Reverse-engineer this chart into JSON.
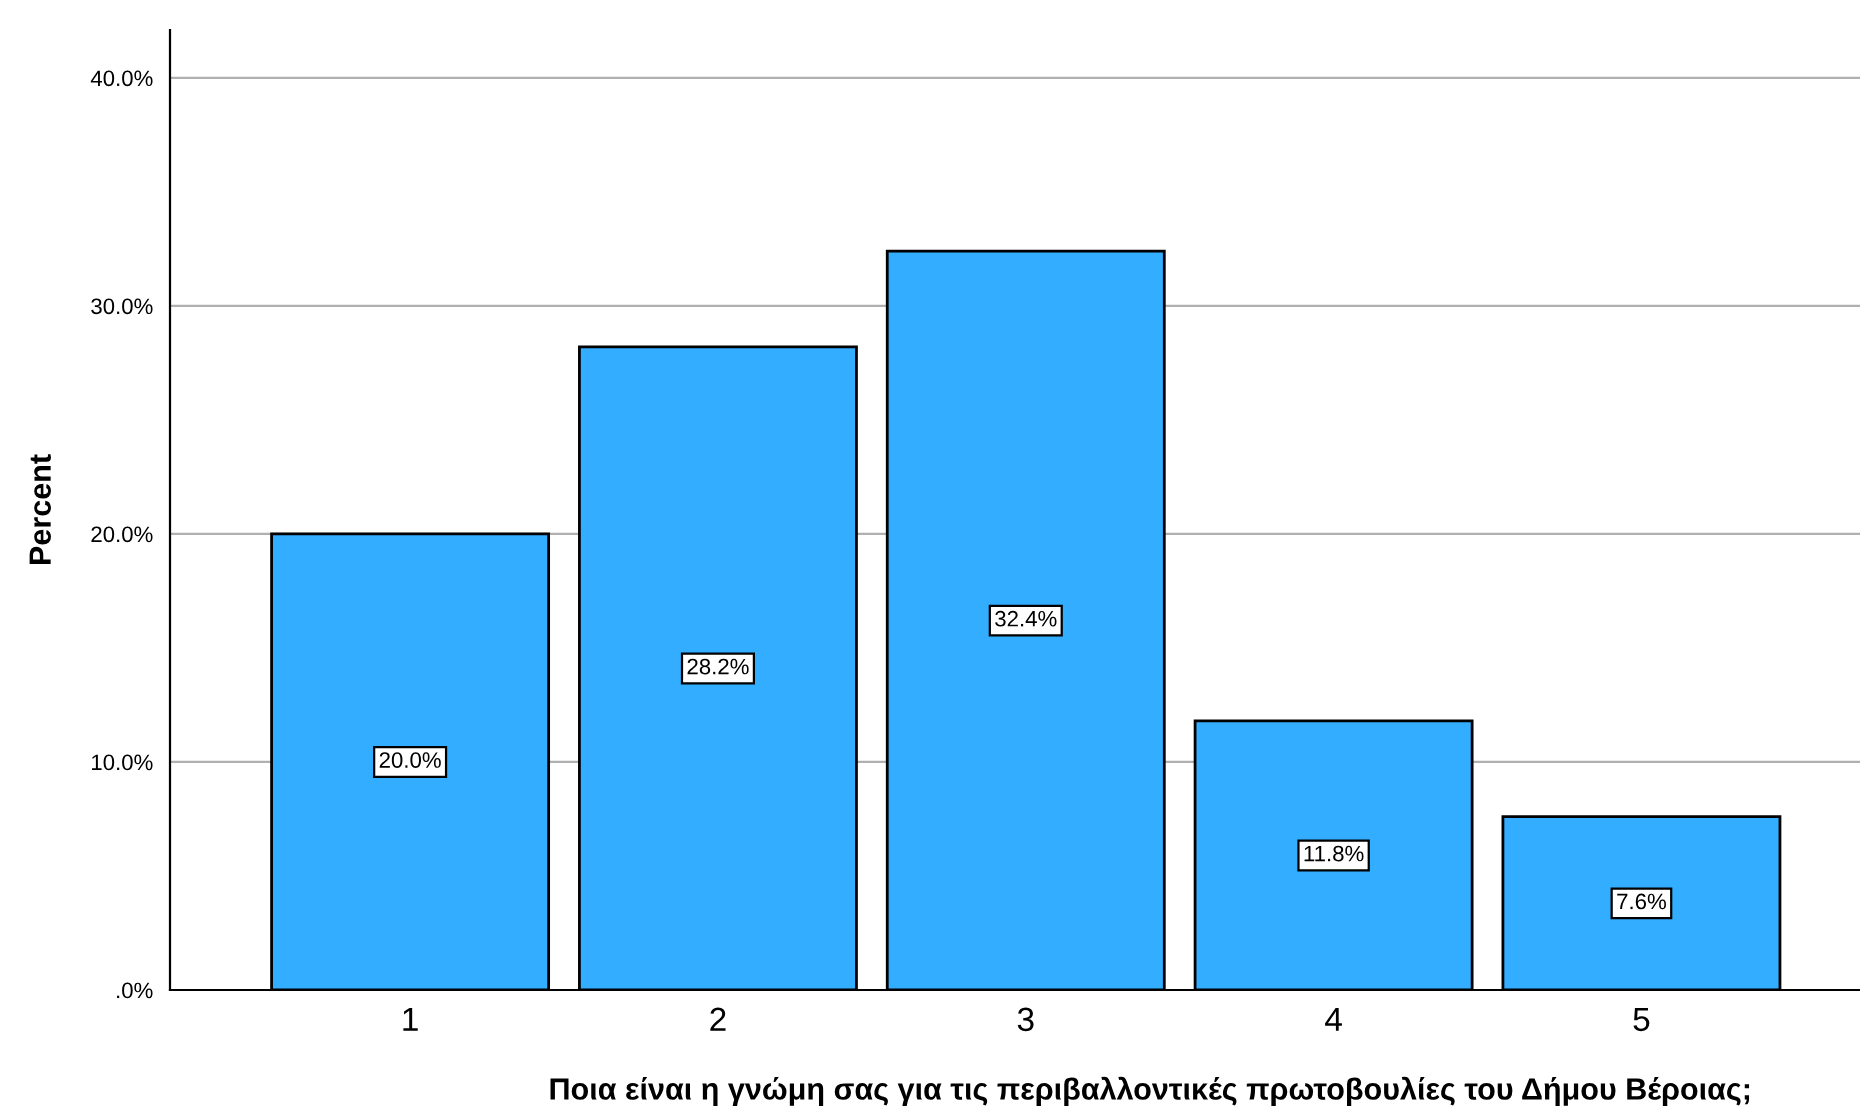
{
  "chart_data": {
    "type": "bar",
    "xlabel": "Ποια είναι η γνώμη σας για τις περιβαλλοντικές πρωτοβουλίες του Δήμου Βέροιας;",
    "ylabel": "Percent",
    "categories": [
      "1",
      "2",
      "3",
      "4",
      "5"
    ],
    "values": [
      20.0,
      28.2,
      32.4,
      11.8,
      7.6
    ],
    "value_labels": [
      "20.0%",
      "28.2%",
      "32.4%",
      "11.8%",
      "7.6%"
    ],
    "color": "#33adff",
    "ylim": [
      0,
      42.1
    ],
    "yticks": [
      {
        "value": 0,
        "label": ".0%"
      },
      {
        "value": 10,
        "label": "10.0%"
      },
      {
        "value": 20,
        "label": "20.0%"
      },
      {
        "value": 30,
        "label": "30.0%"
      },
      {
        "value": 40,
        "label": "40.0%"
      }
    ],
    "grid": "y"
  }
}
